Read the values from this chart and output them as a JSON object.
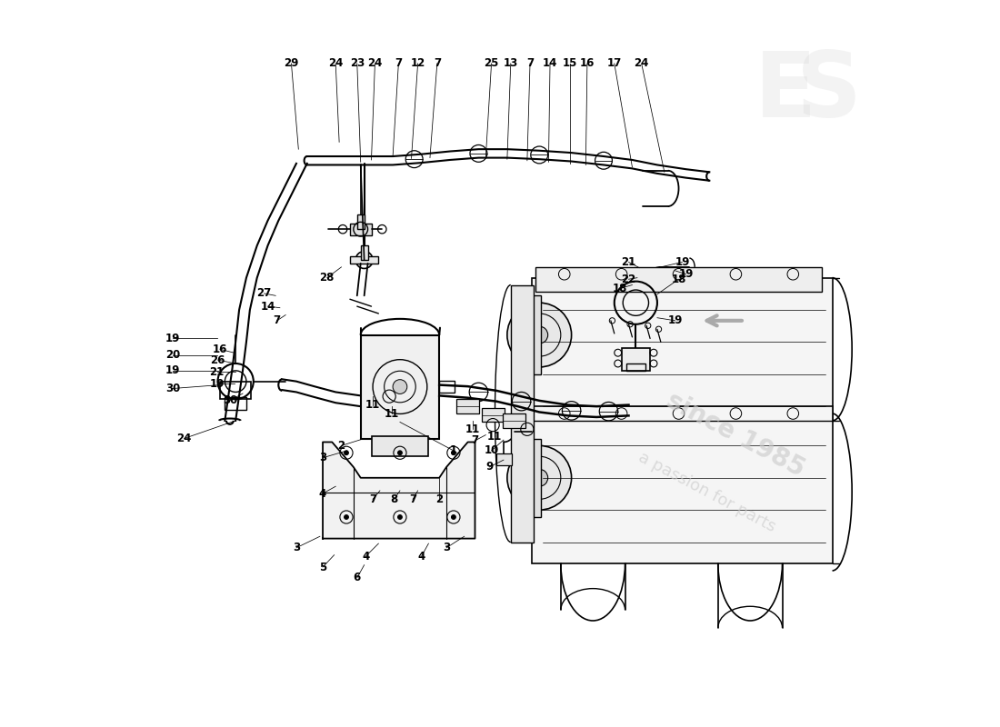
{
  "bg_color": "#ffffff",
  "line_color": "#000000",
  "watermark_text1": "since 1985",
  "watermark_text2": "a passion for parts"
}
